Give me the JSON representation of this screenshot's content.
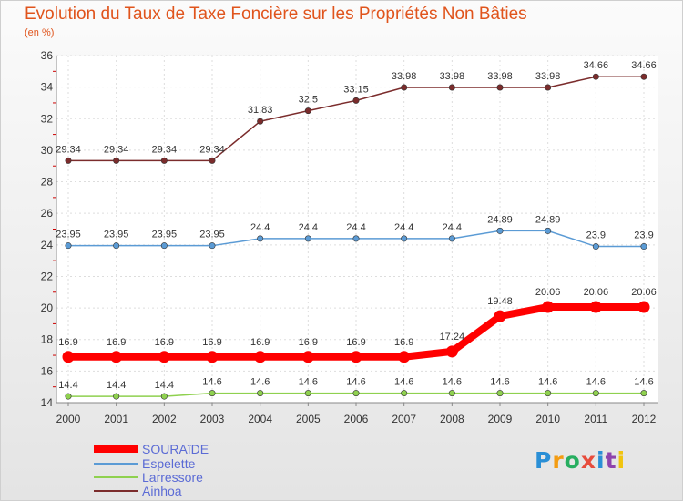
{
  "title": "Evolution du Taux de Taxe Foncière sur les Propriétés Non Bâties",
  "subtitle": "(en %)",
  "brand": "Proxiti",
  "chart_data": {
    "type": "line",
    "title": "Evolution du Taux de Taxe Foncière sur les Propriétés Non Bâties",
    "ylabel": "(en %)",
    "xlabel": "",
    "categories": [
      "2000",
      "2001",
      "2002",
      "2003",
      "2004",
      "2005",
      "2006",
      "2007",
      "2008",
      "2009",
      "2010",
      "2011",
      "2012"
    ],
    "ylim": [
      14,
      36
    ],
    "yticks": [
      14,
      16,
      18,
      20,
      22,
      24,
      26,
      28,
      30,
      32,
      34,
      36
    ],
    "grid": true,
    "legend_position": "bottom-left",
    "series": [
      {
        "name": "SOURAïDE",
        "color": "#ff0000",
        "highlight": true,
        "values": [
          16.9,
          16.9,
          16.9,
          16.9,
          16.9,
          16.9,
          16.9,
          16.9,
          17.24,
          19.48,
          20.06,
          20.06,
          20.06
        ],
        "labels": [
          "16.9",
          "16.9",
          "16.9",
          "16.9",
          "16.9",
          "16.9",
          "16.9",
          "16.9",
          "17.24",
          "19.48",
          "20.06",
          "20.06",
          "20.06"
        ]
      },
      {
        "name": "Espelette",
        "color": "#5b9bd5",
        "highlight": false,
        "values": [
          23.95,
          23.95,
          23.95,
          23.95,
          24.4,
          24.4,
          24.4,
          24.4,
          24.4,
          24.89,
          24.89,
          23.9,
          23.9
        ],
        "labels": [
          "23.95",
          "23.95",
          "23.95",
          "23.95",
          "24.4",
          "24.4",
          "24.4",
          "24.4",
          "24.4",
          "24.89",
          "24.89",
          "23.9",
          "23.9"
        ]
      },
      {
        "name": "Larressore",
        "color": "#8fd14f",
        "highlight": false,
        "values": [
          14.4,
          14.4,
          14.4,
          14.6,
          14.6,
          14.6,
          14.6,
          14.6,
          14.6,
          14.6,
          14.6,
          14.6,
          14.6
        ],
        "labels": [
          "14.4",
          "14.4",
          "14.4",
          "14.6",
          "14.6",
          "14.6",
          "14.6",
          "14.6",
          "14.6",
          "14.6",
          "14.6",
          "14.6",
          "14.6"
        ]
      },
      {
        "name": "Ainhoa",
        "color": "#7b2c2c",
        "highlight": false,
        "values": [
          29.34,
          29.34,
          29.34,
          29.34,
          31.83,
          32.5,
          33.15,
          33.98,
          33.98,
          33.98,
          33.98,
          34.66,
          34.66
        ],
        "labels": [
          "29.34",
          "29.34",
          "29.34",
          "29.34",
          "31.83",
          "32.5",
          "33.15",
          "33.98",
          "33.98",
          "33.98",
          "33.98",
          "34.66",
          "34.66"
        ]
      }
    ]
  }
}
